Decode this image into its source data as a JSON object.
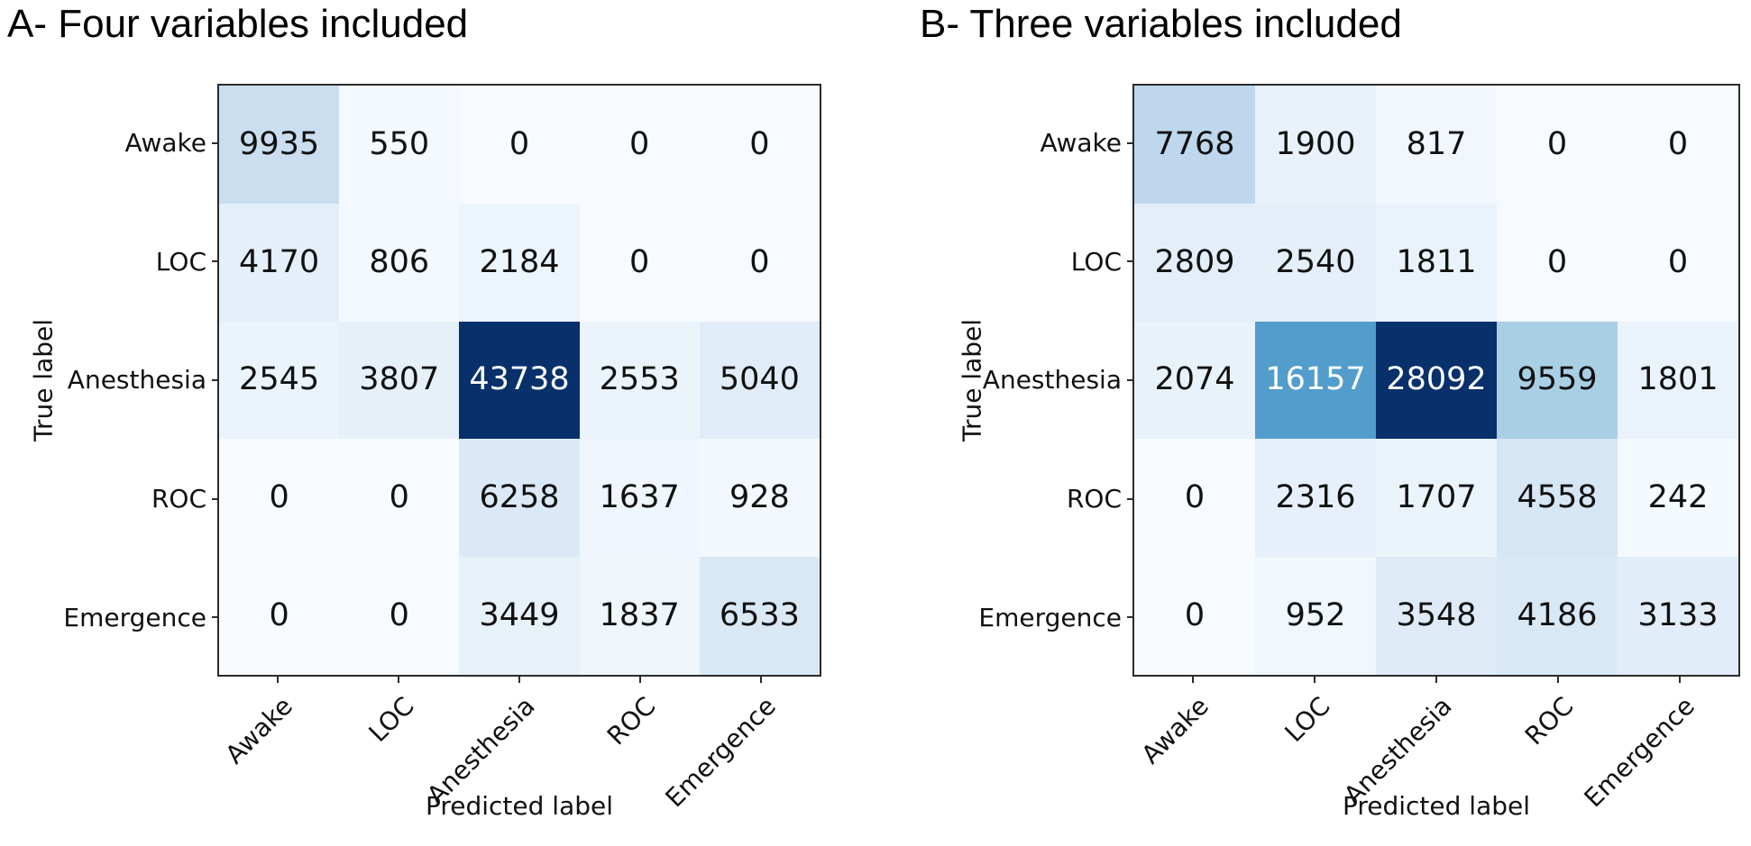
{
  "chart_data": [
    {
      "type": "heatmap",
      "panel": "A",
      "title": "A- Four variables included",
      "xlabel": "Predicted label",
      "ylabel": "True label",
      "x_tick_labels": [
        "Awake",
        "LOC",
        "Anesthesia",
        "ROC",
        "Emergence"
      ],
      "y_tick_labels": [
        "Awake",
        "LOC",
        "Anesthesia",
        "ROC",
        "Emergence"
      ],
      "matrix": [
        [
          9935,
          550,
          0,
          0,
          0
        ],
        [
          4170,
          806,
          2184,
          0,
          0
        ],
        [
          2545,
          3807,
          43738,
          2553,
          5040
        ],
        [
          0,
          0,
          6258,
          1637,
          928
        ],
        [
          0,
          0,
          3449,
          1837,
          6533
        ]
      ],
      "value_max": 43738,
      "colormap": "Blues",
      "x_tick_rotation_deg": 45,
      "grid": false,
      "legend": "none"
    },
    {
      "type": "heatmap",
      "panel": "B",
      "title": "B- Three variables included",
      "xlabel": "Predicted label",
      "ylabel": "True label",
      "x_tick_labels": [
        "Awake",
        "LOC",
        "Anesthesia",
        "ROC",
        "Emergence"
      ],
      "y_tick_labels": [
        "Awake",
        "LOC",
        "Anesthesia",
        "ROC",
        "Emergence"
      ],
      "matrix": [
        [
          7768,
          1900,
          817,
          0,
          0
        ],
        [
          2809,
          2540,
          1811,
          0,
          0
        ],
        [
          2074,
          16157,
          28092,
          9559,
          1801
        ],
        [
          0,
          2316,
          1707,
          4558,
          242
        ],
        [
          0,
          952,
          3548,
          4186,
          3133
        ]
      ],
      "value_max": 28092,
      "colormap": "Blues",
      "x_tick_rotation_deg": 45,
      "grid": false,
      "legend": "none"
    }
  ],
  "colors": {
    "background": "#ffffff",
    "axis_border": "#2b2b2b",
    "tick_mark": "#2b2b2b",
    "label_text": "#111111",
    "title_text": "#000000",
    "cell_text_dark": "#111111",
    "cell_text_light": "#ffffff",
    "colormap_stops": [
      [
        0,
        "#f7fbff"
      ],
      [
        0.125,
        "#deebf7"
      ],
      [
        0.25,
        "#c6dbef"
      ],
      [
        0.375,
        "#9ecae1"
      ],
      [
        0.5,
        "#6baed6"
      ],
      [
        0.625,
        "#4292c6"
      ],
      [
        0.75,
        "#2171b5"
      ],
      [
        0.875,
        "#08519c"
      ],
      [
        1,
        "#08306b"
      ]
    ]
  }
}
